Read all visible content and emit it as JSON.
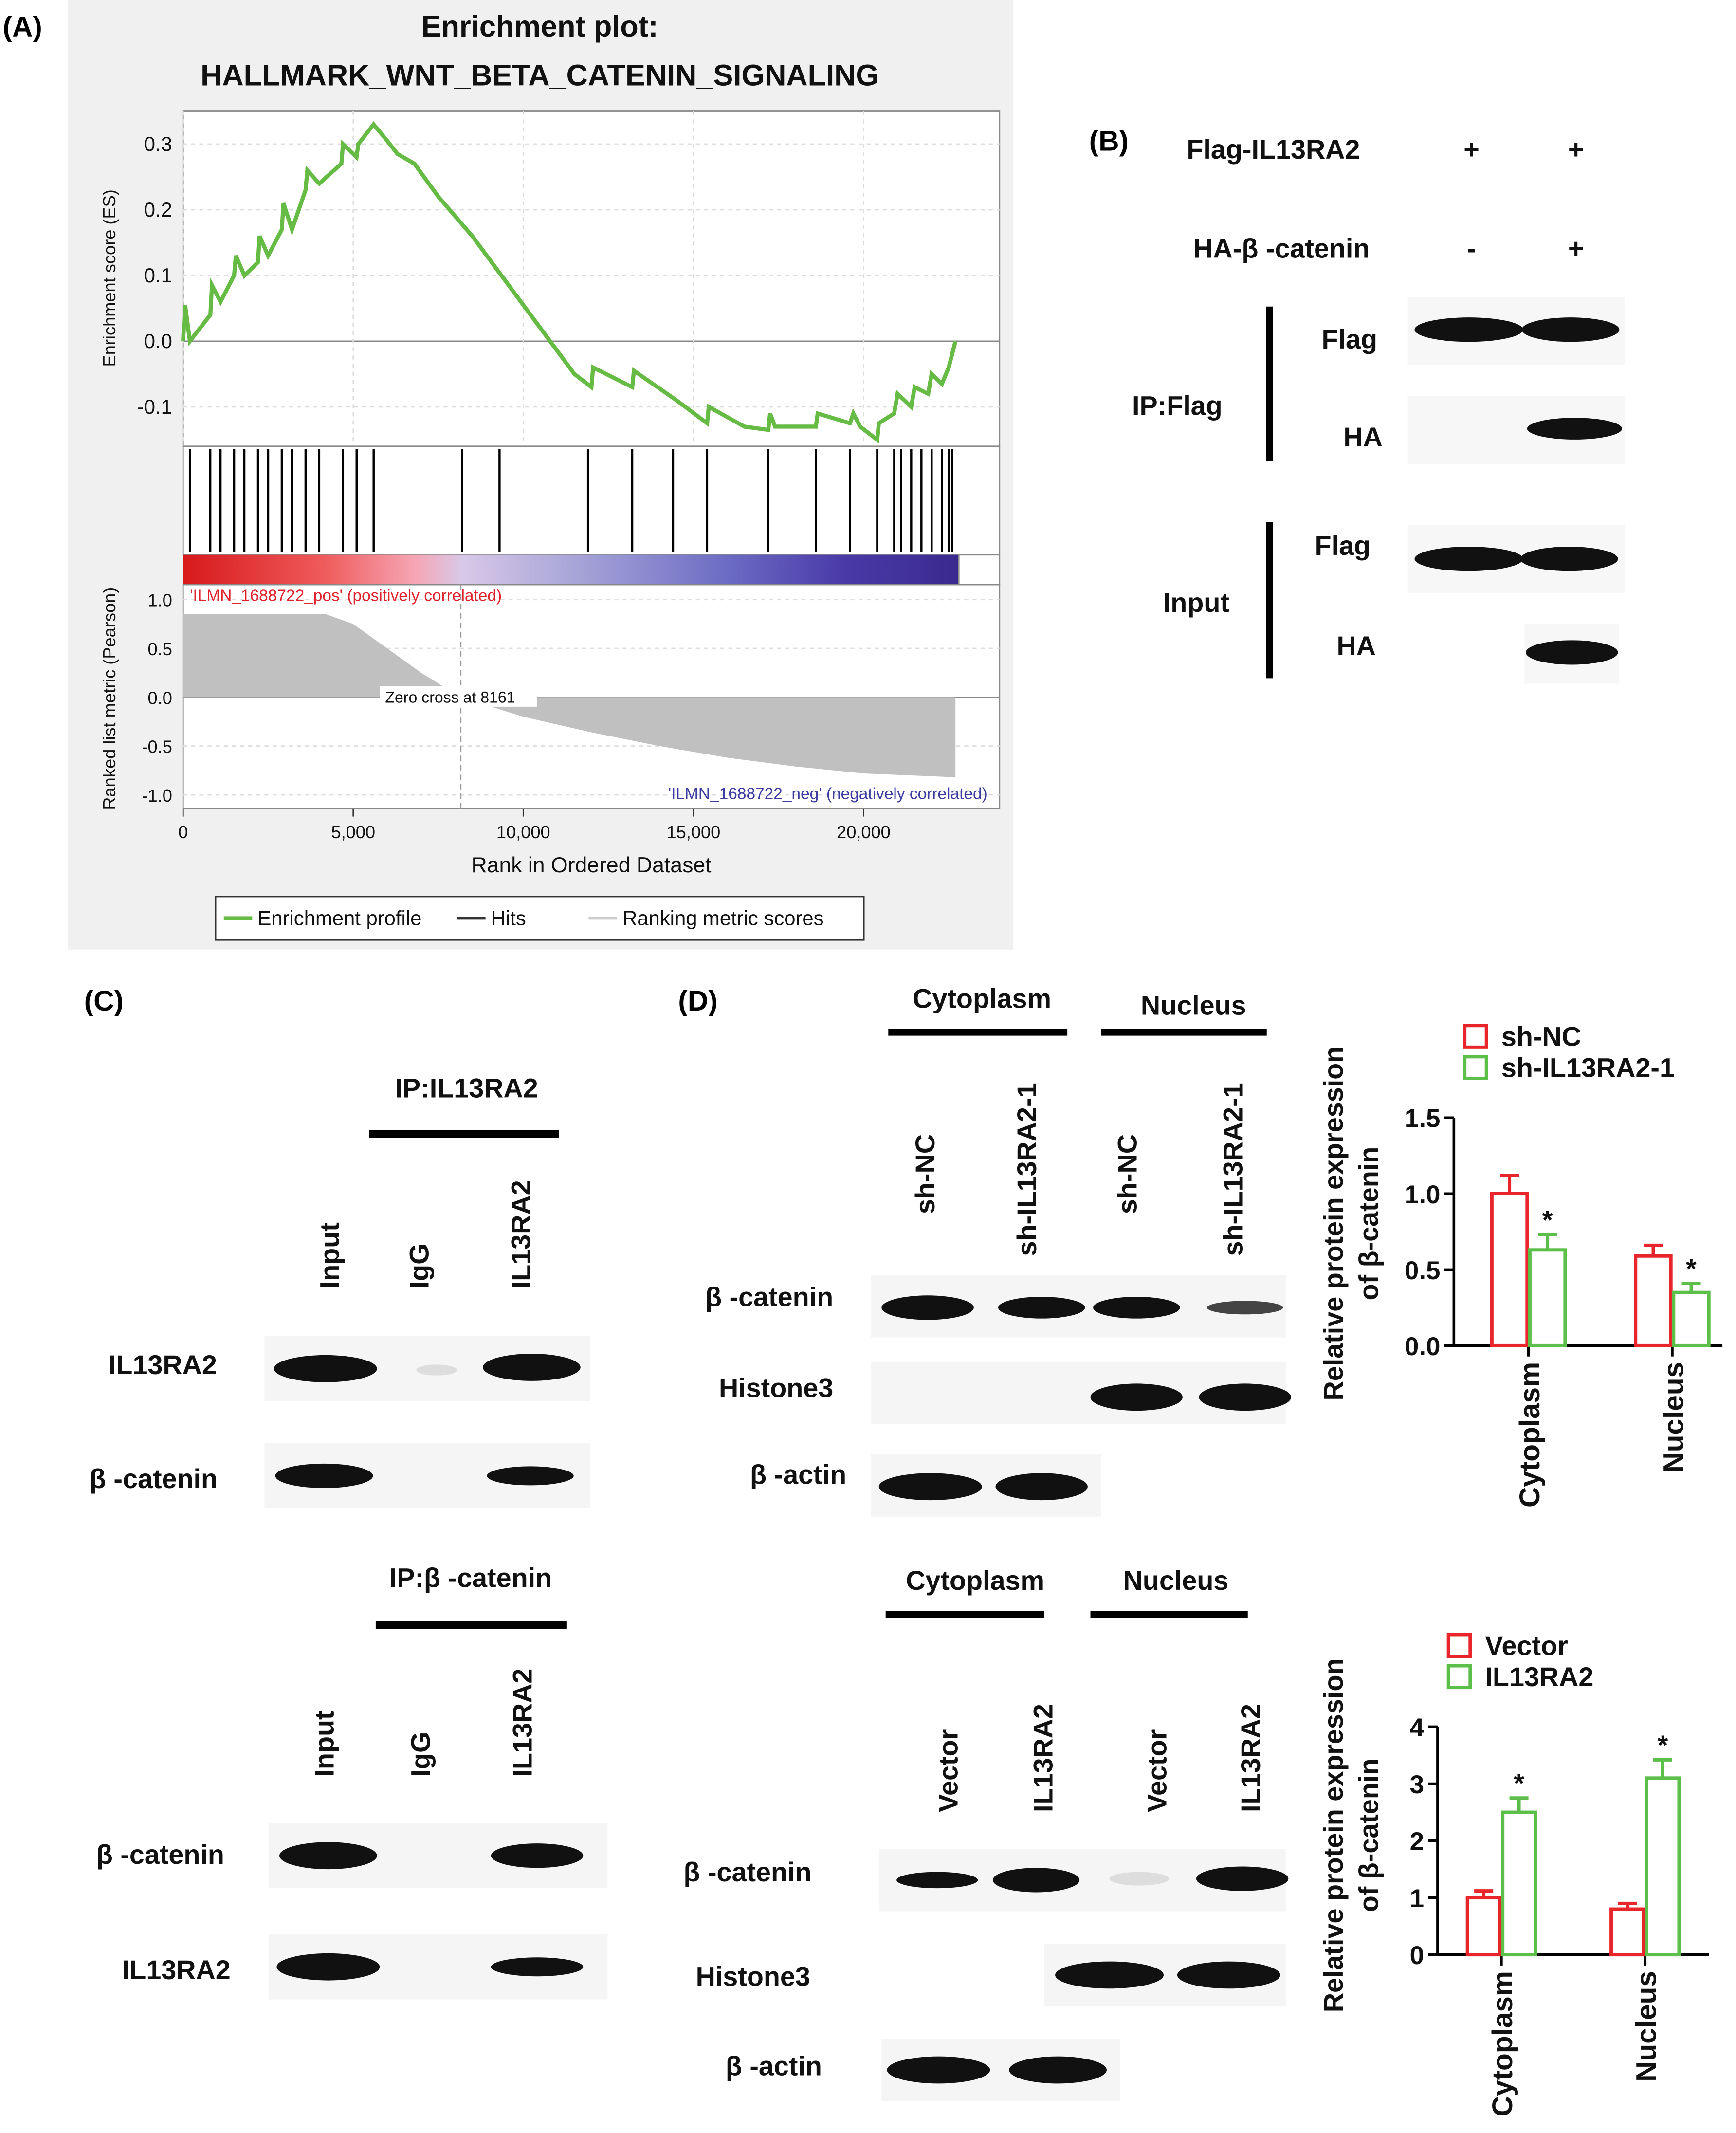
{
  "panels": {
    "A": "(A)",
    "B": "(B)",
    "C": "(C)",
    "D": "(D)"
  },
  "gsea": {
    "title_line1": "Enrichment plot:",
    "title_line2": "HALLMARK_WNT_BETA_CATENIN_SIGNALING",
    "es_ylabel": "Enrichment score (ES)",
    "rank_ylabel": "Ranked list metric (Pearson)",
    "xlabel": "Rank in Ordered Dataset",
    "pos_label": "'ILMN_1688722_pos' (positively correlated)",
    "neg_label": "'ILMN_1688722_neg' (negatively correlated)",
    "zero_cross": "Zero cross at 8161",
    "legend": {
      "profile": "Enrichment profile",
      "hits": "Hits",
      "ranking": "Ranking metric scores"
    },
    "colors": {
      "profile": "#66bb44",
      "hits": "#000000",
      "ranking": "#c0c0c0",
      "pos": "#e0202a",
      "neg": "#3a3aa0"
    }
  },
  "panel_b": {
    "rows": [
      {
        "label": "Flag-IL13RA2",
        "lane1": "+",
        "lane2": "+"
      },
      {
        "label": "HA-β -catenin",
        "lane1": "-",
        "lane2": "+"
      }
    ],
    "ip_group": "IP:Flag",
    "input_group": "Input",
    "blots": [
      "Flag",
      "HA",
      "Flag",
      "HA"
    ]
  },
  "panel_c": {
    "top": {
      "ip": "IP:IL13RA2",
      "lanes": [
        "Input",
        "IgG",
        "IL13RA2"
      ],
      "blots": [
        "IL13RA2",
        "β -catenin"
      ]
    },
    "bottom": {
      "ip": "IP:β -catenin",
      "lanes": [
        "Input",
        "IgG",
        "IL13RA2"
      ],
      "blots": [
        "β -catenin",
        "IL13RA2"
      ]
    }
  },
  "panel_d": {
    "top": {
      "groups": [
        "Cytoplasm",
        "Nucleus"
      ],
      "lanes": [
        "sh-NC",
        "sh-IL13RA2-1",
        "sh-NC",
        "sh-IL13RA2-1"
      ],
      "blots": [
        "β -catenin",
        "Histone3",
        "β -actin"
      ]
    },
    "bottom": {
      "groups": [
        "Cytoplasm",
        "Nucleus"
      ],
      "lanes": [
        "Vector",
        "IL13RA2",
        "Vector",
        "IL13RA2"
      ],
      "blots": [
        "β -catenin",
        "Histone3",
        "β -actin"
      ]
    }
  },
  "chart_data": [
    {
      "type": "line",
      "title": "Enrichment plot: HALLMARK_WNT_BETA_CATENIN_SIGNALING",
      "xlabel": "Rank in Ordered Dataset",
      "ylabel": "Enrichment score (ES)",
      "xlim": [
        0,
        22800
      ],
      "ylim": [
        -0.16,
        0.35
      ],
      "xticks": [
        "0",
        "5,000",
        "10,000",
        "15,000",
        "20,000"
      ],
      "yticks": [
        "0.3",
        "0.2",
        "0.1",
        "0.0",
        "-0.1"
      ],
      "grid": true,
      "series": [
        {
          "name": "Enrichment profile",
          "x": [
            0,
            60,
            200,
            800,
            850,
            1100,
            1500,
            1550,
            1800,
            2200,
            2250,
            2500,
            2900,
            2950,
            3200,
            3600,
            3650,
            4000,
            4650,
            4700,
            5100,
            5150,
            5600,
            6000,
            6300,
            6800,
            7500,
            8500,
            9500,
            10500,
            11500,
            12000,
            12050,
            13200,
            13250,
            14500,
            15400,
            15450,
            16500,
            17200,
            17250,
            17400,
            18600,
            18650,
            19600,
            19700,
            19900,
            20400,
            20450,
            20900,
            21000,
            21400,
            21500,
            21900,
            22000,
            22300,
            22500,
            22700
          ],
          "y": [
            0.0,
            0.055,
            0.0,
            0.04,
            0.085,
            0.06,
            0.1,
            0.13,
            0.1,
            0.12,
            0.16,
            0.13,
            0.17,
            0.21,
            0.17,
            0.23,
            0.26,
            0.24,
            0.27,
            0.3,
            0.28,
            0.3,
            0.33,
            0.305,
            0.285,
            0.27,
            0.22,
            0.16,
            0.09,
            0.02,
            -0.05,
            -0.07,
            -0.04,
            -0.07,
            -0.045,
            -0.09,
            -0.125,
            -0.1,
            -0.13,
            -0.135,
            -0.11,
            -0.13,
            -0.13,
            -0.11,
            -0.125,
            -0.11,
            -0.13,
            -0.15,
            -0.125,
            -0.11,
            -0.08,
            -0.1,
            -0.07,
            -0.08,
            -0.05,
            -0.065,
            -0.04,
            0.0
          ]
        }
      ],
      "hits": [
        200,
        800,
        1100,
        1500,
        1800,
        2200,
        2500,
        2900,
        3200,
        3600,
        4000,
        4700,
        5100,
        5600,
        8200,
        9300,
        11900,
        13200,
        14400,
        15400,
        17200,
        18600,
        19600,
        20400,
        20900,
        21100,
        21400,
        21700,
        22000,
        22300,
        22500,
        22600
      ]
    },
    {
      "type": "area",
      "title": "",
      "xlabel": "Rank in Ordered Dataset",
      "ylabel": "Ranked list metric (Pearson)",
      "xlim": [
        0,
        22800
      ],
      "ylim": [
        -1.0,
        1.0
      ],
      "yticks": [
        "1.0",
        "0.5",
        "0.0",
        "-0.5",
        "-1.0"
      ],
      "series": [
        {
          "name": "Ranking metric scores",
          "x": [
            0,
            4200,
            5000,
            6000,
            7000,
            8161,
            10000,
            12000,
            14000,
            16000,
            18000,
            20000,
            22700
          ],
          "y": [
            0.85,
            0.85,
            0.75,
            0.5,
            0.25,
            0.0,
            -0.2,
            -0.36,
            -0.5,
            -0.62,
            -0.71,
            -0.78,
            -0.82
          ]
        }
      ]
    },
    {
      "type": "bar",
      "categories": [
        "Cytoplasm",
        "Nucleus"
      ],
      "ylabel": "Relative protein expression of β-catenin",
      "ylim": [
        0,
        1.5
      ],
      "yticks": [
        "0.0",
        "0.5",
        "1.0",
        "1.5"
      ],
      "series": [
        {
          "name": "sh-NC",
          "values": [
            1.0,
            0.59
          ],
          "errors": [
            0.12,
            0.07
          ],
          "color": "#e8252a"
        },
        {
          "name": "sh-IL13RA2-1",
          "values": [
            0.63,
            0.35
          ],
          "errors": [
            0.1,
            0.06
          ],
          "color": "#5cbf4a"
        }
      ],
      "significance": "*"
    },
    {
      "type": "bar",
      "categories": [
        "Cytoplasm",
        "Nucleus"
      ],
      "ylabel": "Relative protein expression of β-catenin",
      "ylim": [
        0,
        4
      ],
      "yticks": [
        "0",
        "1",
        "2",
        "3",
        "4"
      ],
      "series": [
        {
          "name": "Vector",
          "values": [
            1.0,
            0.8
          ],
          "errors": [
            0.12,
            0.1
          ],
          "color": "#e8252a"
        },
        {
          "name": "IL13RA2",
          "values": [
            2.5,
            3.1
          ],
          "errors": [
            0.25,
            0.32
          ],
          "color": "#5cbf4a"
        }
      ],
      "significance": "*"
    }
  ]
}
